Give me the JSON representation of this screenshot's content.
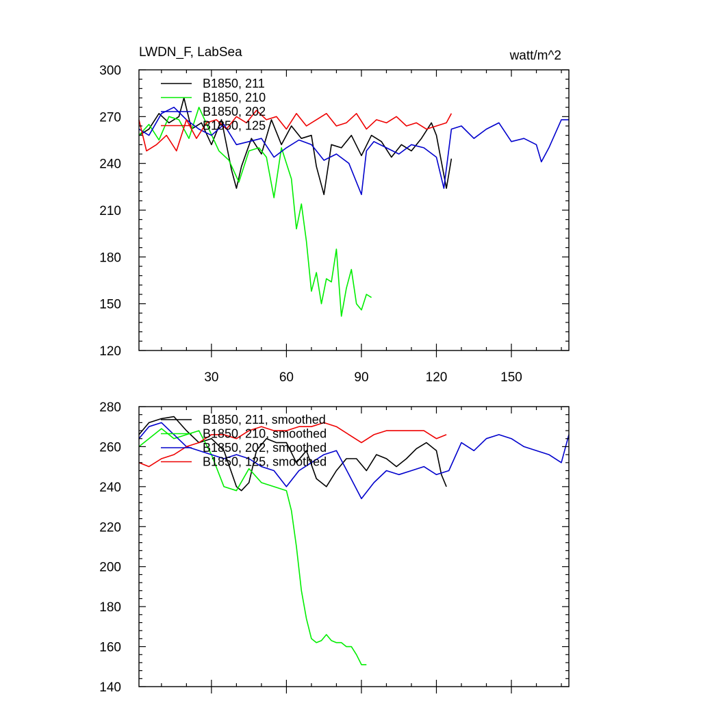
{
  "chart_data": [
    {
      "type": "line",
      "title": "LWDN_F, LabSea",
      "units": "watt/m^2",
      "xlabel": "",
      "ylabel": "",
      "xlim": [
        1,
        173
      ],
      "ylim": [
        120,
        300
      ],
      "xticks": [
        30,
        60,
        90,
        120,
        150
      ],
      "xtick_labels": [
        "30",
        "60",
        "90",
        "120",
        "150"
      ],
      "yticks": [
        120,
        150,
        180,
        210,
        240,
        270,
        300
      ],
      "ytick_labels": [
        "120",
        "150",
        "180",
        "210",
        "240",
        "270",
        "300"
      ],
      "grid": false,
      "legend_position": "top-left",
      "series": [
        {
          "name": "B1850, 211",
          "color": "#000000",
          "x": [
            1,
            5,
            9,
            13,
            17,
            19,
            22,
            26,
            30,
            34,
            38,
            40,
            42,
            46,
            50,
            54,
            58,
            62,
            66,
            70,
            72,
            75,
            78,
            82,
            86,
            90,
            94,
            98,
            102,
            106,
            110,
            114,
            118,
            120,
            124,
            126
          ],
          "values": [
            258,
            262,
            272,
            266,
            270,
            282,
            262,
            266,
            252,
            268,
            236,
            224,
            238,
            256,
            246,
            268,
            252,
            264,
            256,
            258,
            238,
            220,
            252,
            250,
            258,
            245,
            258,
            254,
            244,
            252,
            248,
            256,
            266,
            258,
            224,
            243
          ]
        },
        {
          "name": "B1850, 210",
          "color": "#00ee00",
          "x": [
            1,
            5,
            9,
            13,
            17,
            21,
            25,
            29,
            33,
            37,
            41,
            45,
            49,
            52,
            55,
            58,
            62,
            64,
            66,
            68,
            70,
            72,
            74,
            76,
            78,
            80,
            82,
            84,
            86,
            88,
            90,
            92,
            94
          ],
          "values": [
            258,
            265,
            255,
            270,
            268,
            256,
            276,
            262,
            248,
            242,
            228,
            248,
            250,
            244,
            218,
            250,
            230,
            198,
            214,
            190,
            158,
            170,
            150,
            166,
            164,
            185,
            142,
            160,
            172,
            150,
            146,
            156,
            154
          ]
        },
        {
          "name": "B1850, 202",
          "color": "#0000cc",
          "x": [
            1,
            5,
            10,
            15,
            20,
            25,
            30,
            35,
            40,
            45,
            50,
            55,
            60,
            65,
            70,
            75,
            80,
            85,
            90,
            92,
            95,
            100,
            105,
            110,
            115,
            120,
            123,
            126,
            130,
            135,
            140,
            145,
            150,
            155,
            160,
            162,
            165,
            170,
            173
          ],
          "values": [
            262,
            258,
            272,
            276,
            268,
            262,
            258,
            265,
            252,
            254,
            256,
            244,
            250,
            255,
            252,
            242,
            246,
            240,
            220,
            248,
            254,
            250,
            246,
            252,
            250,
            244,
            224,
            262,
            264,
            256,
            262,
            266,
            254,
            256,
            252,
            241,
            250,
            268,
            268
          ]
        },
        {
          "name": "B1850, 125",
          "color": "#ee0000",
          "x": [
            1,
            4,
            8,
            12,
            16,
            20,
            24,
            28,
            32,
            36,
            40,
            44,
            48,
            52,
            56,
            60,
            64,
            68,
            72,
            76,
            80,
            84,
            88,
            92,
            96,
            100,
            104,
            108,
            112,
            116,
            120,
            124,
            126
          ],
          "values": [
            268,
            248,
            252,
            258,
            248,
            268,
            256,
            266,
            268,
            262,
            270,
            266,
            274,
            268,
            270,
            262,
            272,
            264,
            268,
            272,
            264,
            266,
            272,
            262,
            268,
            266,
            270,
            264,
            266,
            262,
            264,
            266,
            272
          ]
        }
      ]
    },
    {
      "type": "line",
      "title": "",
      "xlabel": "",
      "ylabel": "",
      "xlim": [
        1,
        173
      ],
      "ylim": [
        140,
        280
      ],
      "xticks": [
        30,
        60,
        90,
        120,
        150
      ],
      "xtick_labels": [],
      "yticks": [
        140,
        160,
        180,
        200,
        220,
        240,
        260,
        280
      ],
      "ytick_labels": [
        "140",
        "160",
        "180",
        "200",
        "220",
        "240",
        "260",
        "280"
      ],
      "grid": false,
      "legend_position": "top-left",
      "series": [
        {
          "name": "B1850, 211, smoothed",
          "color": "#000000",
          "x": [
            1,
            5,
            10,
            15,
            20,
            25,
            30,
            35,
            40,
            42,
            45,
            48,
            52,
            56,
            60,
            64,
            68,
            72,
            76,
            80,
            84,
            88,
            92,
            96,
            100,
            104,
            108,
            112,
            116,
            120,
            122,
            124
          ],
          "values": [
            266,
            272,
            274,
            275,
            268,
            262,
            264,
            258,
            240,
            238,
            242,
            258,
            264,
            262,
            262,
            252,
            258,
            244,
            240,
            248,
            254,
            254,
            248,
            256,
            254,
            250,
            254,
            259,
            262,
            258,
            246,
            240
          ]
        },
        {
          "name": "B1850, 210, smoothed",
          "color": "#00ee00",
          "x": [
            1,
            5,
            10,
            15,
            20,
            25,
            30,
            35,
            40,
            45,
            50,
            55,
            60,
            62,
            64,
            66,
            68,
            70,
            72,
            74,
            76,
            78,
            80,
            82,
            84,
            86,
            88,
            90,
            92
          ],
          "values": [
            260,
            264,
            269,
            264,
            266,
            268,
            256,
            240,
            238,
            249,
            242,
            240,
            238,
            228,
            210,
            188,
            174,
            164,
            162,
            163,
            166,
            163,
            162,
            162,
            160,
            160,
            156,
            151,
            151
          ]
        },
        {
          "name": "B1850, 202, smoothed",
          "color": "#0000cc",
          "x": [
            1,
            5,
            10,
            15,
            20,
            25,
            30,
            35,
            40,
            45,
            50,
            55,
            60,
            65,
            70,
            75,
            80,
            85,
            90,
            95,
            100,
            105,
            110,
            115,
            120,
            125,
            130,
            135,
            140,
            145,
            150,
            155,
            160,
            165,
            170,
            173
          ],
          "values": [
            264,
            270,
            272,
            266,
            260,
            258,
            256,
            254,
            256,
            254,
            250,
            248,
            240,
            248,
            252,
            256,
            258,
            246,
            234,
            242,
            248,
            246,
            248,
            250,
            246,
            248,
            262,
            258,
            264,
            266,
            264,
            260,
            258,
            256,
            252,
            266
          ]
        },
        {
          "name": "B1850, 125, smoothed",
          "color": "#ee0000",
          "x": [
            1,
            5,
            10,
            15,
            20,
            25,
            30,
            35,
            40,
            45,
            50,
            55,
            60,
            65,
            70,
            75,
            80,
            85,
            90,
            95,
            100,
            105,
            110,
            115,
            120,
            124
          ],
          "values": [
            252,
            250,
            254,
            256,
            260,
            262,
            266,
            266,
            264,
            268,
            270,
            268,
            268,
            270,
            270,
            272,
            270,
            266,
            262,
            266,
            268,
            268,
            268,
            268,
            264,
            266
          ]
        }
      ]
    }
  ]
}
